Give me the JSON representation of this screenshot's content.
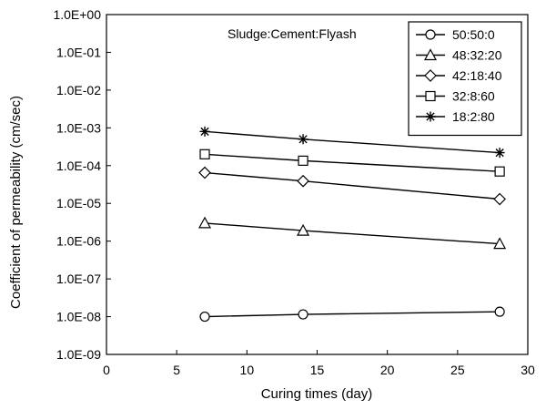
{
  "chart_data": {
    "type": "line",
    "title": "",
    "annotation": "Sludge:Cement:Flyash",
    "xlabel": "Curing times (day)",
    "ylabel": "Coefficient of permeability (cm/sec)",
    "xlim": [
      0,
      30
    ],
    "ylim": [
      1e-09,
      1
    ],
    "yscale": "log",
    "xticks": [
      "0",
      "5",
      "10",
      "15",
      "20",
      "25",
      "30"
    ],
    "yticks": [
      "1.0E-09",
      "1.0E-08",
      "1.0E-07",
      "1.0E-06",
      "1.0E-05",
      "1.0E-04",
      "1.0E-03",
      "1.0E-02",
      "1.0E-01",
      "1.0E+00"
    ],
    "x": [
      7,
      14,
      28
    ],
    "legend_position": "top-right",
    "series": [
      {
        "name": "50:50:0",
        "marker": "circle",
        "values": [
          1e-08,
          1.15e-08,
          1.35e-08
        ]
      },
      {
        "name": "48:32:20",
        "marker": "triangle",
        "values": [
          3e-06,
          1.9e-06,
          8.5e-07
        ]
      },
      {
        "name": "42:18:40",
        "marker": "diamond",
        "values": [
          6.5e-05,
          3.9e-05,
          1.3e-05
        ]
      },
      {
        "name": "32:8:60",
        "marker": "square",
        "values": [
          0.0002,
          0.000135,
          7e-05
        ]
      },
      {
        "name": "18:2:80",
        "marker": "star",
        "values": [
          0.0008,
          0.0005,
          0.00022
        ]
      }
    ]
  }
}
